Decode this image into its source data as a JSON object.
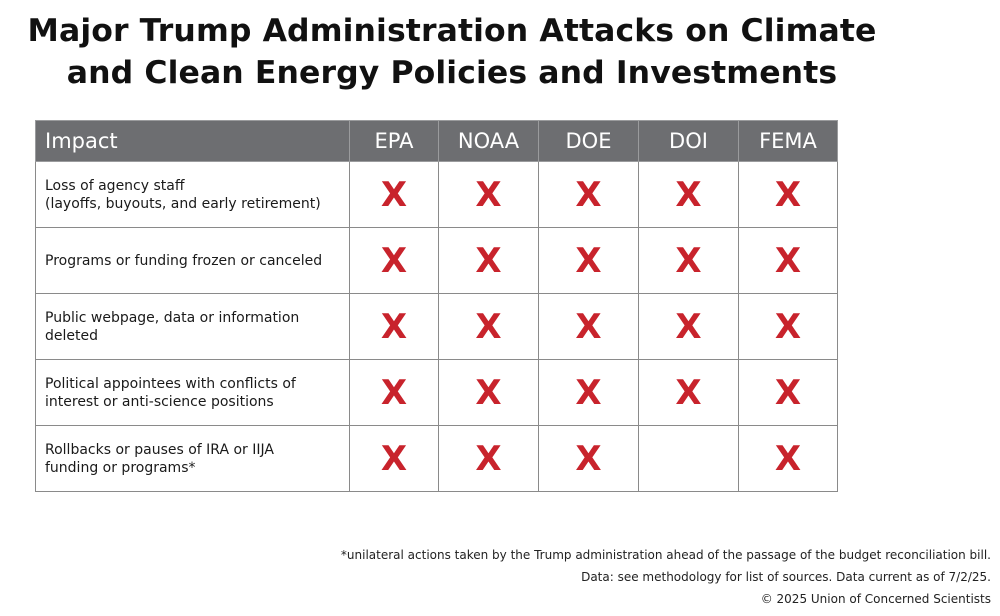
{
  "title_lines": [
    "Major Trump Administration Attacks on Climate",
    "and Clean Energy Policies and Investments"
  ],
  "colors": {
    "header_bg": "#6d6e71",
    "mark": "#c8232c"
  },
  "chart_data": {
    "type": "table",
    "columns": [
      "Impact",
      "EPA",
      "NOAA",
      "DOE",
      "DOI",
      "FEMA"
    ],
    "mark_symbol": "X",
    "rows": [
      {
        "impact_lines": [
          "Loss of agency staff",
          "(layoffs, buyouts, and early retirement)"
        ],
        "marks": {
          "EPA": true,
          "NOAA": true,
          "DOE": true,
          "DOI": true,
          "FEMA": true
        }
      },
      {
        "impact_lines": [
          "Programs or funding frozen or canceled"
        ],
        "marks": {
          "EPA": true,
          "NOAA": true,
          "DOE": true,
          "DOI": true,
          "FEMA": true
        }
      },
      {
        "impact_lines": [
          "Public webpage, data or information",
          "deleted"
        ],
        "marks": {
          "EPA": true,
          "NOAA": true,
          "DOE": true,
          "DOI": true,
          "FEMA": true
        }
      },
      {
        "impact_lines": [
          "Political appointees with conflicts of",
          "interest or anti-science positions"
        ],
        "marks": {
          "EPA": true,
          "NOAA": true,
          "DOE": true,
          "DOI": true,
          "FEMA": true
        }
      },
      {
        "impact_lines": [
          "Rollbacks or pauses of IRA or IIJA",
          "funding or programs*"
        ],
        "marks": {
          "EPA": true,
          "NOAA": true,
          "DOE": true,
          "DOI": false,
          "FEMA": true
        }
      }
    ]
  },
  "footnotes": [
    "*unilateral actions taken by the Trump administration ahead of the passage of the budget reconciliation bill.",
    "Data: see methodology for list of sources. Data current as of 7/2/25.",
    "© 2025 Union of Concerned Scientists"
  ]
}
